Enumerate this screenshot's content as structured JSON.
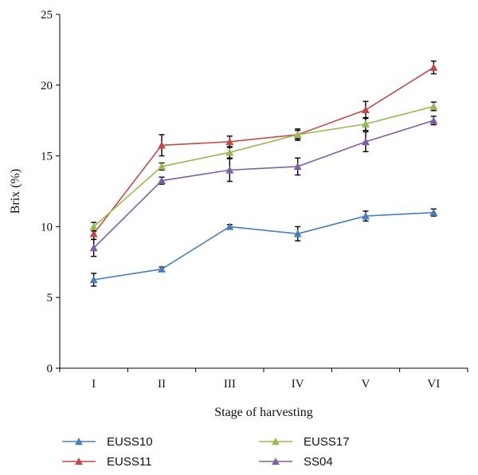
{
  "chart_data": {
    "type": "line",
    "title": "",
    "xlabel": "Stage of harvesting",
    "ylabel": "Brix (%)",
    "categories": [
      "I",
      "II",
      "III",
      "IV",
      "V",
      "VI"
    ],
    "ylim": [
      0,
      25
    ],
    "yticks": [
      0,
      5,
      10,
      15,
      20,
      25
    ],
    "grid": false,
    "legend_position": "bottom",
    "series": [
      {
        "name": "EUSS10",
        "color": "#4a7ebb",
        "values": [
          6.25,
          7.0,
          10.0,
          9.5,
          10.75,
          11.0
        ],
        "errors": [
          0.45,
          0.15,
          0.15,
          0.5,
          0.35,
          0.25
        ]
      },
      {
        "name": "EUSS11",
        "color": "#be4b48",
        "values": [
          9.5,
          15.75,
          16.0,
          16.5,
          18.25,
          21.25
        ],
        "errors": [
          0.4,
          0.75,
          0.4,
          0.4,
          0.6,
          0.45
        ]
      },
      {
        "name": "EUSS17",
        "color": "#98b954",
        "values": [
          10.0,
          14.25,
          15.25,
          16.5,
          17.25,
          18.5
        ],
        "errors": [
          0.3,
          0.25,
          0.4,
          0.3,
          0.45,
          0.3
        ]
      },
      {
        "name": "SS04",
        "color": "#7d60a0",
        "values": [
          8.5,
          13.25,
          14.0,
          14.25,
          16.0,
          17.5
        ],
        "errors": [
          0.6,
          0.25,
          0.8,
          0.6,
          0.7,
          0.3
        ]
      }
    ]
  }
}
